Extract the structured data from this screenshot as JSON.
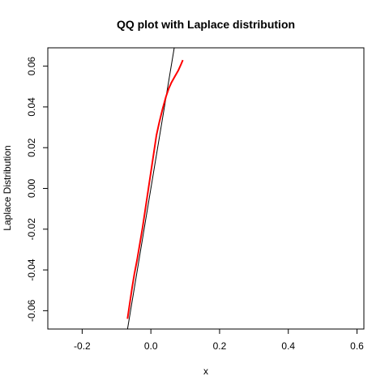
{
  "chart_data": {
    "type": "line",
    "title": "QQ plot with Laplace distribution",
    "xlabel": "x",
    "ylabel": "Laplace Distribution",
    "xlim": [
      -0.3,
      0.62
    ],
    "ylim": [
      -0.069,
      0.069
    ],
    "x_ticks": [
      -0.2,
      0.0,
      0.2,
      0.4,
      0.6
    ],
    "x_tick_labels": [
      "-0.2",
      "0.0",
      "0.2",
      "0.4",
      "0.6"
    ],
    "y_ticks": [
      -0.06,
      -0.04,
      -0.02,
      0.0,
      0.02,
      0.04,
      0.06
    ],
    "y_tick_labels": [
      "-0.06",
      "-0.04",
      "-0.02",
      "0.00",
      "0.02",
      "0.04",
      "0.06"
    ],
    "grid": false,
    "series": [
      {
        "color": "#ff0000",
        "x": [
          -0.068,
          -0.062,
          -0.055,
          -0.048,
          -0.04,
          -0.032,
          -0.024,
          -0.016,
          -0.008,
          0.0,
          0.008,
          0.016,
          0.024,
          0.034,
          0.044,
          0.052,
          0.06,
          0.07,
          0.08,
          0.088,
          0.093
        ],
        "y": [
          -0.064,
          -0.057,
          -0.049,
          -0.042,
          -0.035,
          -0.027,
          -0.019,
          -0.01,
          -0.001,
          0.008,
          0.017,
          0.026,
          0.032,
          0.039,
          0.045,
          0.049,
          0.052,
          0.055,
          0.058,
          0.061,
          0.063
        ]
      }
    ],
    "reference_line": {
      "color": "#000000",
      "x": [
        -0.068,
        0.068
      ],
      "y": [
        -0.069,
        0.069
      ]
    }
  }
}
